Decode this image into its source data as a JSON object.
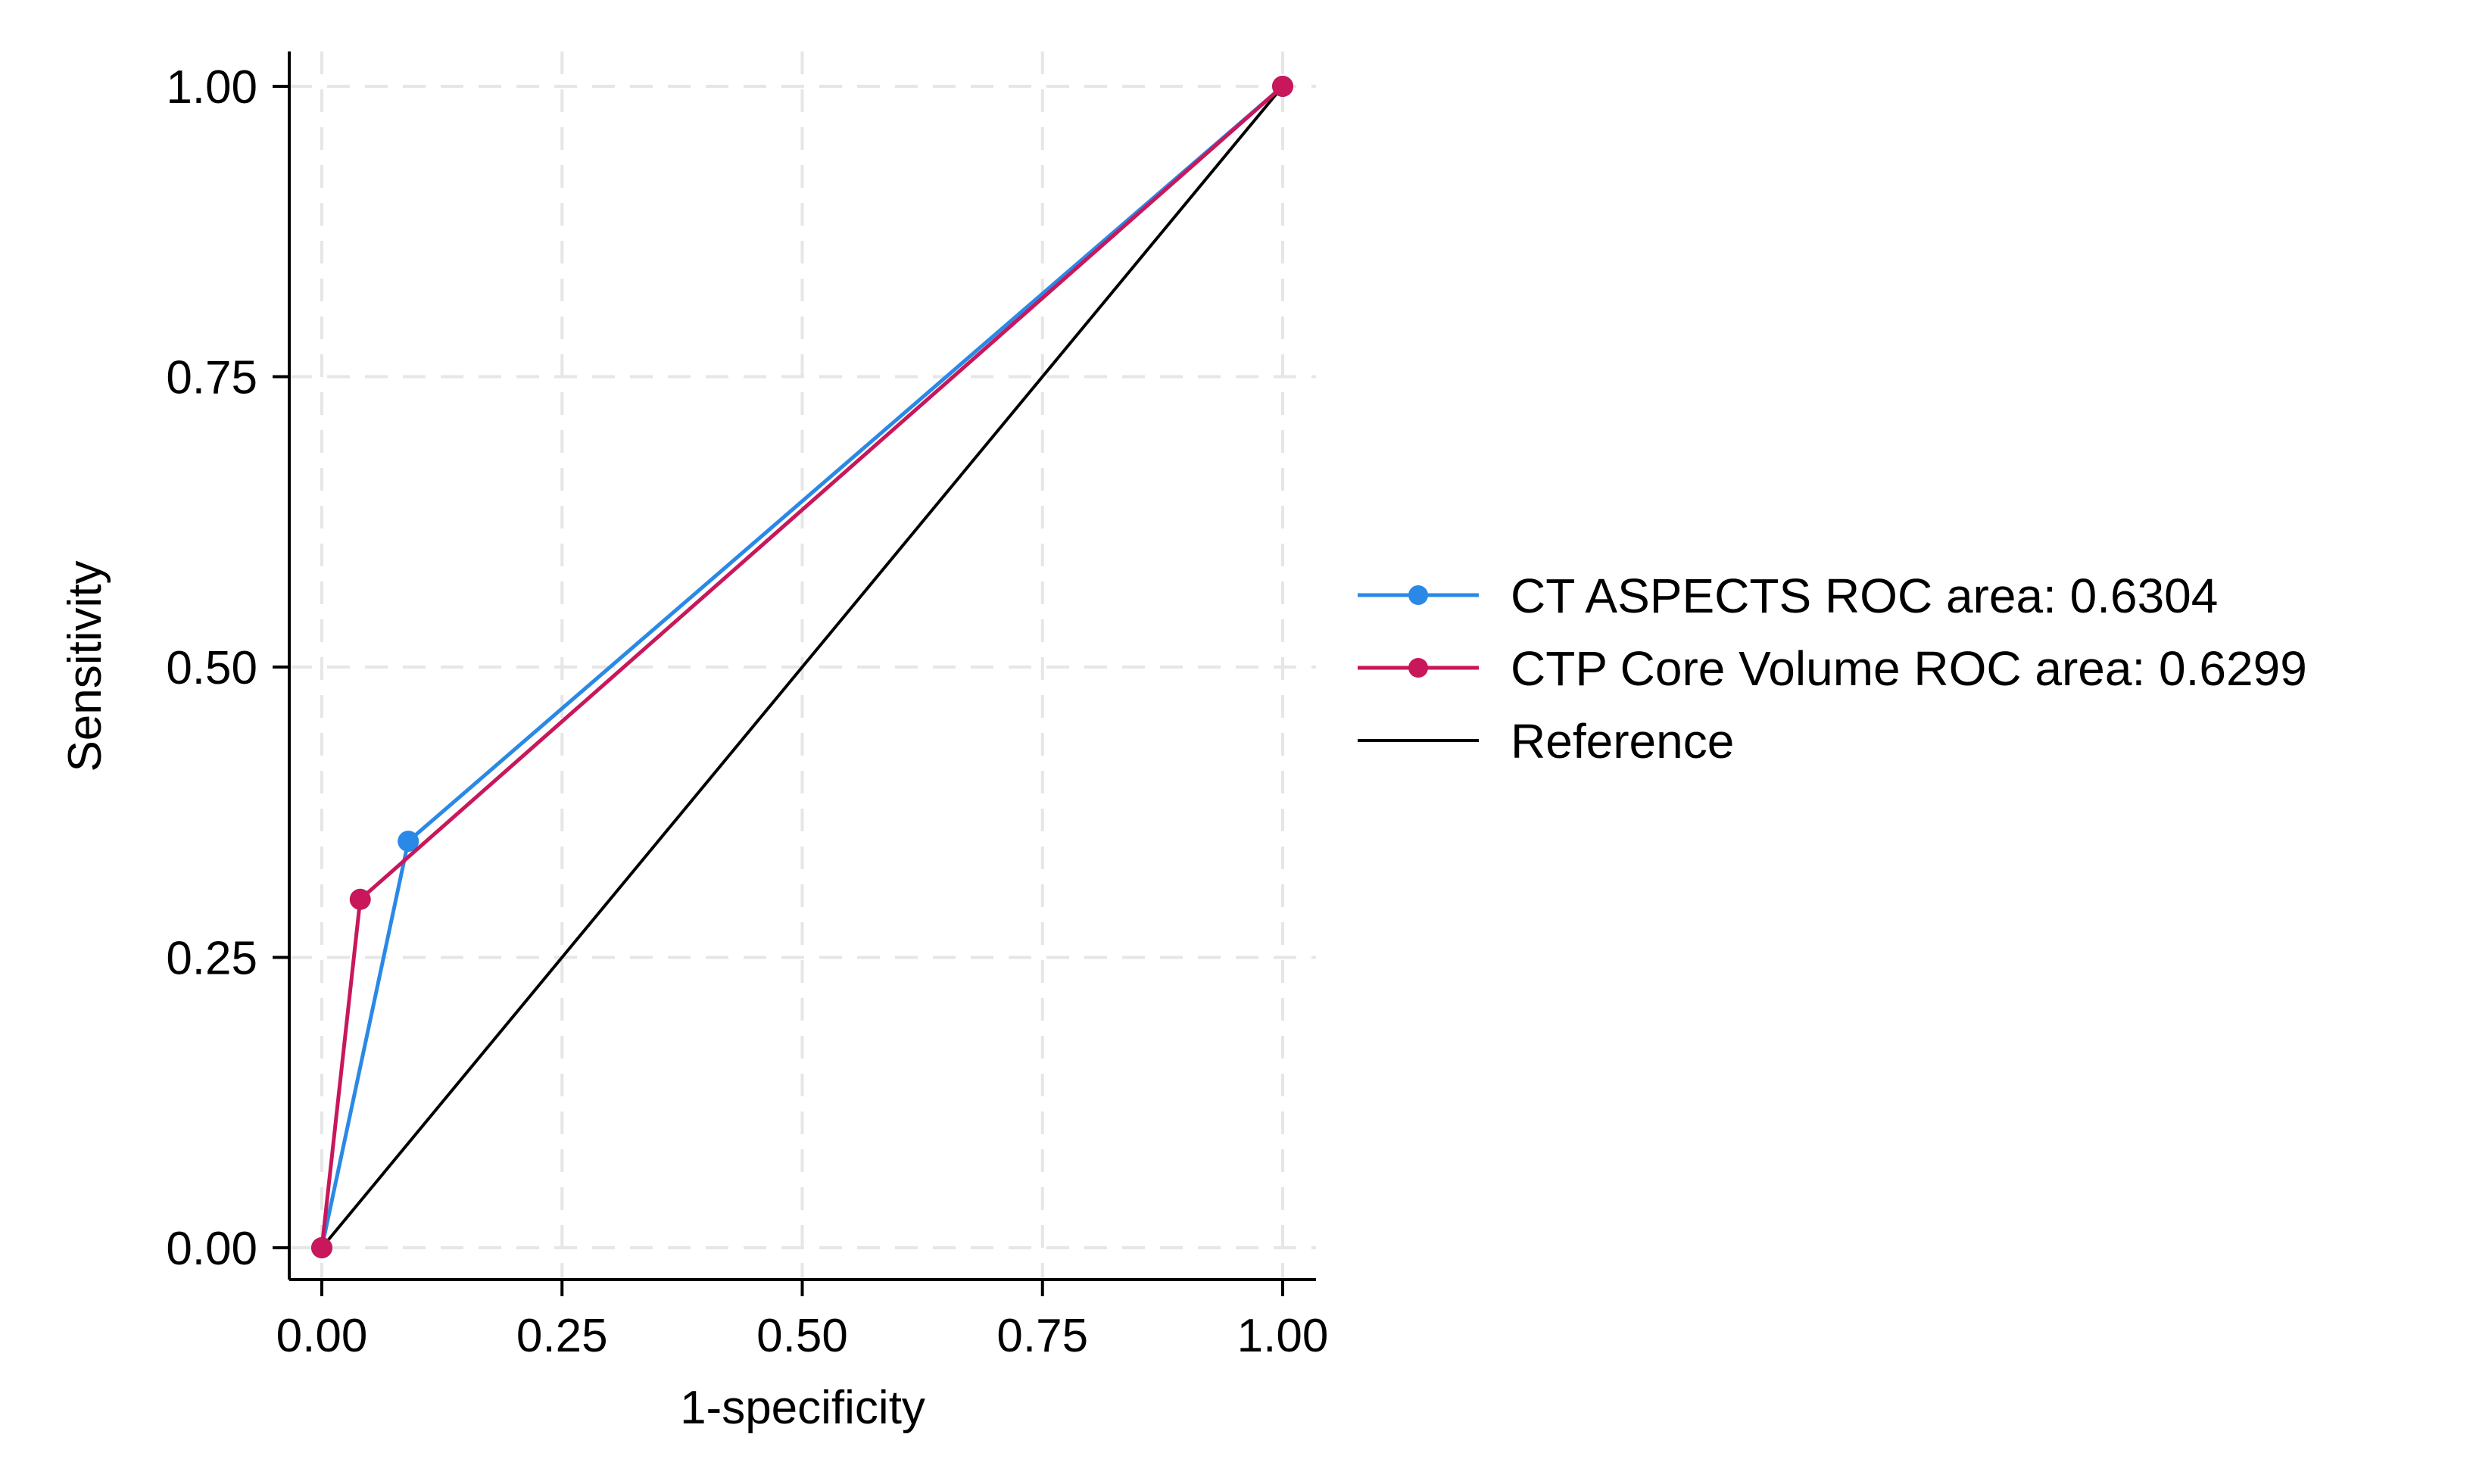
{
  "chart_data": {
    "type": "line",
    "title": "",
    "xlabel": "1-specificity",
    "ylabel": "Sensitivity",
    "xlim": [
      0,
      1
    ],
    "ylim": [
      0,
      1
    ],
    "x_ticks": [
      "0.00",
      "0.25",
      "0.50",
      "0.75",
      "1.00"
    ],
    "y_ticks": [
      "0.00",
      "0.25",
      "0.50",
      "0.75",
      "1.00"
    ],
    "grid": true,
    "legend_position": "right",
    "series": [
      {
        "name": "CT ASPECTS ROC area: 0.6304",
        "color": "#2a89e6",
        "markers": true,
        "points": [
          [
            0,
            0
          ],
          [
            0.09,
            0.35
          ],
          [
            1,
            1
          ]
        ]
      },
      {
        "name": "CTP Core Volume ROC area: 0.6299",
        "color": "#c8175b",
        "markers": true,
        "points": [
          [
            0,
            0
          ],
          [
            0.04,
            0.3
          ],
          [
            1,
            1
          ]
        ]
      },
      {
        "name": "Reference",
        "color": "#000000",
        "markers": false,
        "points": [
          [
            0,
            0
          ],
          [
            1,
            1
          ]
        ]
      }
    ]
  }
}
